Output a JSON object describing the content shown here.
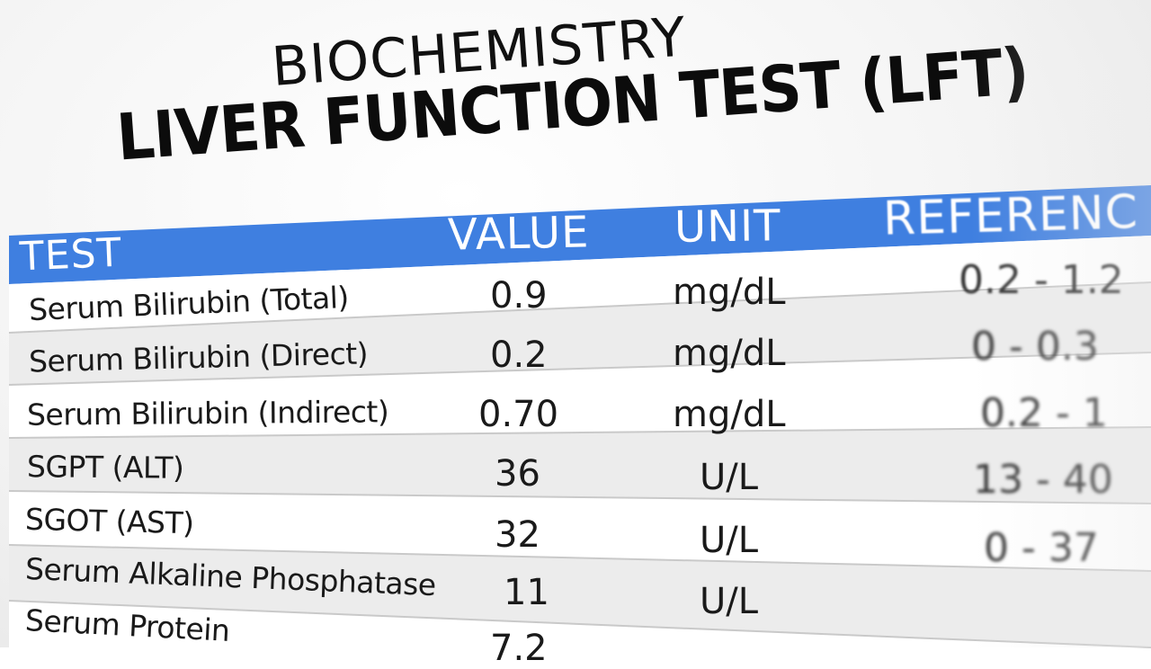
{
  "document": {
    "title_line1": "BIOCHEMISTRY",
    "title_line2": "LIVER FUNCTION TEST (LFT)"
  },
  "table": {
    "headers": {
      "test": "TEST",
      "value": "VALUE",
      "unit": "UNIT",
      "reference": "REFERENC"
    },
    "rows": [
      {
        "test": "Serum Bilirubin (Total)",
        "value": "0.9",
        "unit": "mg/dL",
        "reference": "0.2 - 1.2"
      },
      {
        "test": "Serum Bilirubin (Direct)",
        "value": "0.2",
        "unit": "mg/dL",
        "reference": "0 - 0.3"
      },
      {
        "test": "Serum Bilirubin (Indirect)",
        "value": "0.70",
        "unit": "mg/dL",
        "reference": "0.2 - 1"
      },
      {
        "test": "SGPT (ALT)",
        "value": "36",
        "unit": "U/L",
        "reference": "13 - 40"
      },
      {
        "test": "SGOT (AST)",
        "value": "32",
        "unit": "U/L",
        "reference": "0 - 37"
      },
      {
        "test": "Serum Alkaline Phosphatase",
        "value": "11",
        "unit": "U/L",
        "reference": ""
      },
      {
        "test": "Serum Protein",
        "value": "7.2",
        "unit": "",
        "reference": ""
      }
    ]
  },
  "colors": {
    "header_band": "#3f7fe0",
    "row_alt": "#ececec",
    "row_plain": "#ffffff",
    "text": "#1a1a1a"
  }
}
